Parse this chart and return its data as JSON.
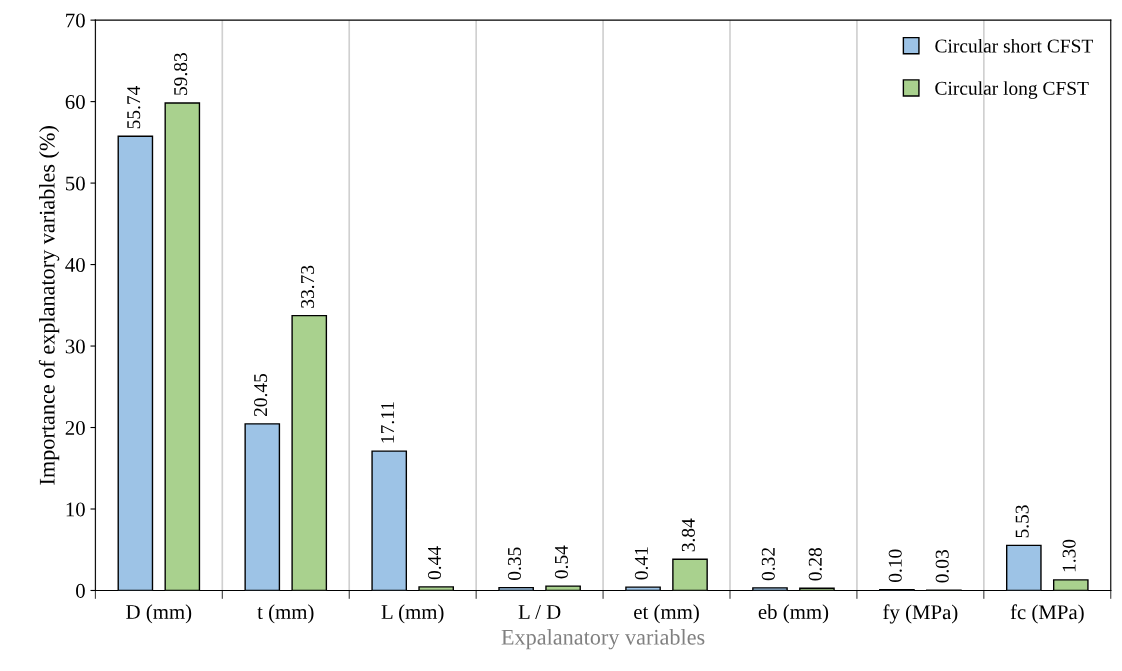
{
  "chart_data": {
    "type": "bar",
    "xlabel": "Expalanatory variables",
    "ylabel": "Importance of explanatory variables (%)",
    "categories": [
      "D (mm)",
      "t (mm)",
      "L (mm)",
      "L / D",
      "et (mm)",
      "eb (mm)",
      "fy (MPa)",
      "fc (MPa)"
    ],
    "series": [
      {
        "name": "Circular short CFST",
        "color": "#9dc3e6",
        "values": [
          55.74,
          20.45,
          17.11,
          0.35,
          0.41,
          0.32,
          0.1,
          5.53
        ],
        "value_labels": [
          "55.74",
          "20.45",
          "17.11",
          "0.35",
          "0.41",
          "0.32",
          "0.10",
          "5.53"
        ]
      },
      {
        "name": "Circular long CFST",
        "color": "#a9d18e",
        "values": [
          59.83,
          33.73,
          0.44,
          0.54,
          3.84,
          0.28,
          0.03,
          1.3
        ],
        "value_labels": [
          "59.83",
          "33.73",
          "0.44",
          "0.54",
          "3.84",
          "0.28",
          "0.03",
          "1.30"
        ]
      }
    ],
    "ylim": [
      0,
      70
    ],
    "yticks": [
      0,
      10,
      20,
      30,
      40,
      50,
      60,
      70
    ],
    "grid": "x",
    "legend": "top right"
  }
}
